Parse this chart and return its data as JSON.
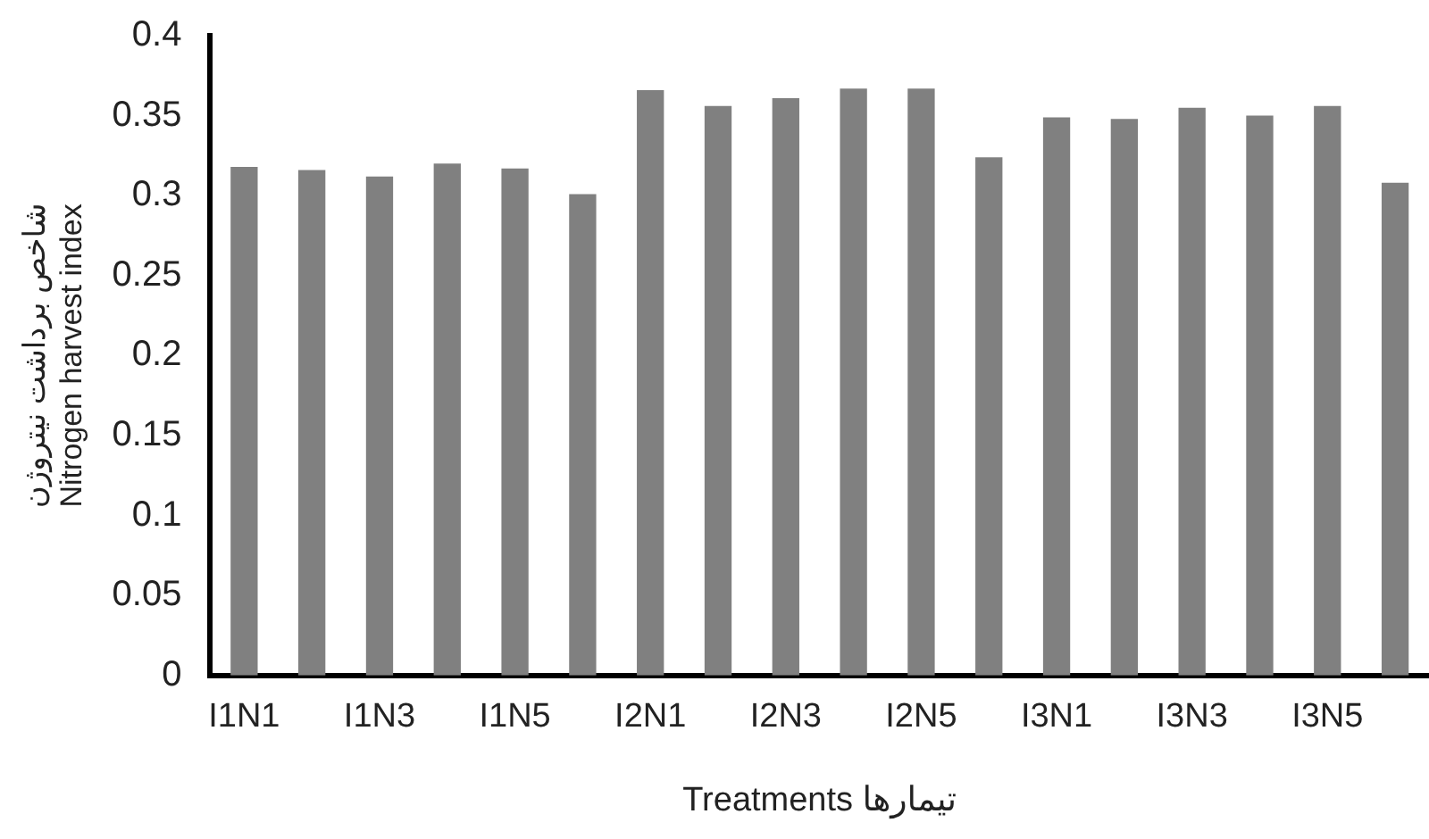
{
  "chart_data": {
    "type": "bar",
    "xlabel": "Treatments تیمارها",
    "ylabel": "شاخص برداشت نیتروژن\nNitrogen harvest index",
    "categories": [
      "I1N1",
      null,
      "I1N3",
      null,
      "I1N5",
      null,
      "I2N1",
      null,
      "I2N3",
      null,
      "I2N5",
      null,
      "I3N1",
      null,
      "I3N3",
      null,
      "I3N5",
      null
    ],
    "values": [
      0.318,
      0.316,
      0.312,
      0.32,
      0.317,
      0.301,
      0.366,
      0.356,
      0.361,
      0.367,
      0.367,
      0.324,
      0.349,
      0.348,
      0.355,
      0.35,
      0.356,
      0.308
    ],
    "color": "#808080",
    "ylim": [
      0,
      0.4
    ],
    "yticks": [
      0,
      0.05,
      0.1,
      0.15,
      0.2,
      0.25,
      0.3,
      0.35,
      0.4
    ],
    "grid": false,
    "legend": false
  }
}
